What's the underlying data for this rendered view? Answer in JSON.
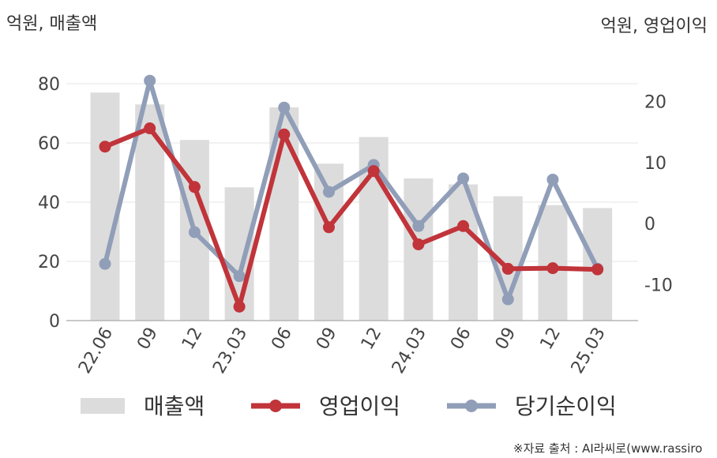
{
  "chart_data": {
    "type": "bar+line",
    "categories": [
      "22.06",
      "09",
      "12",
      "23.03",
      "06",
      "09",
      "12",
      "24.03",
      "06",
      "09",
      "12",
      "25.03"
    ],
    "left_axis": {
      "unit_label": "억원, 매출액",
      "ylim": [
        0,
        80
      ],
      "ticks": [
        "0",
        "20",
        "40",
        "60",
        "80"
      ]
    },
    "right_axis": {
      "unit_label": "억원, 영업이익",
      "ylim": [
        -16,
        24
      ],
      "ticks": [
        "-10",
        "0",
        "10",
        "20"
      ]
    },
    "series": [
      {
        "name": "매출액",
        "type": "bar",
        "axis": "left",
        "color": "#dcdcdc",
        "values": [
          77,
          73,
          61,
          45,
          72,
          53,
          62,
          48,
          46,
          42,
          39,
          38
        ]
      },
      {
        "name": "영업이익",
        "type": "line",
        "axis": "right",
        "color": "#c0343a",
        "values": [
          12.6,
          15.6,
          6.0,
          -13.6,
          14.6,
          -0.6,
          8.6,
          -3.4,
          -0.4,
          -7.4,
          -7.3,
          -7.5
        ]
      },
      {
        "name": "당기순이익",
        "type": "line",
        "axis": "right",
        "color": "#919eb8",
        "values": [
          -6.6,
          23.4,
          -1.4,
          -8.6,
          19.0,
          5.2,
          9.6,
          -0.4,
          7.4,
          -12.4,
          7.2,
          -7.4
        ]
      }
    ],
    "grid": true,
    "legend_position": "bottom"
  },
  "source": "※자료 출처 : AI라씨로(www.rassiro"
}
